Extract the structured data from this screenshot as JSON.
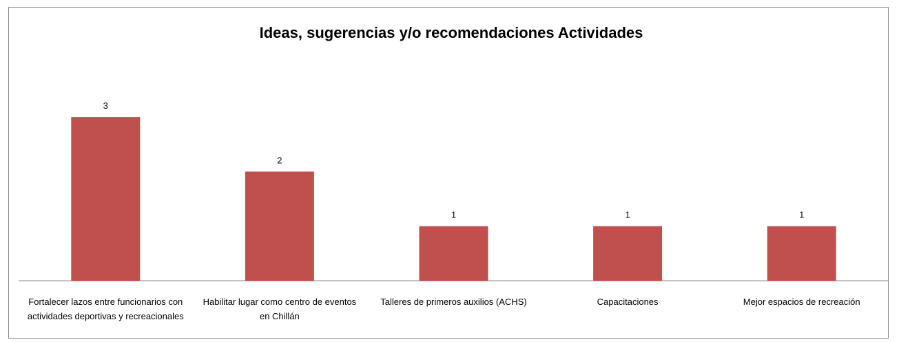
{
  "chart_data": {
    "type": "bar",
    "title": "Ideas, sugerencias y/o recomendaciones Actividades",
    "categories": [
      "Fortalecer lazos entre funcionarios con actividades deportivas y recreacionales",
      "Habilitar lugar como centro de eventos en Chillán",
      "Talleres de primeros auxilios (ACHS)",
      "Capacitaciones",
      "Mejor espacios de recreación"
    ],
    "values": [
      3,
      2,
      1,
      1,
      1
    ],
    "color": "#c0504d",
    "ylim": [
      0,
      5
    ]
  }
}
